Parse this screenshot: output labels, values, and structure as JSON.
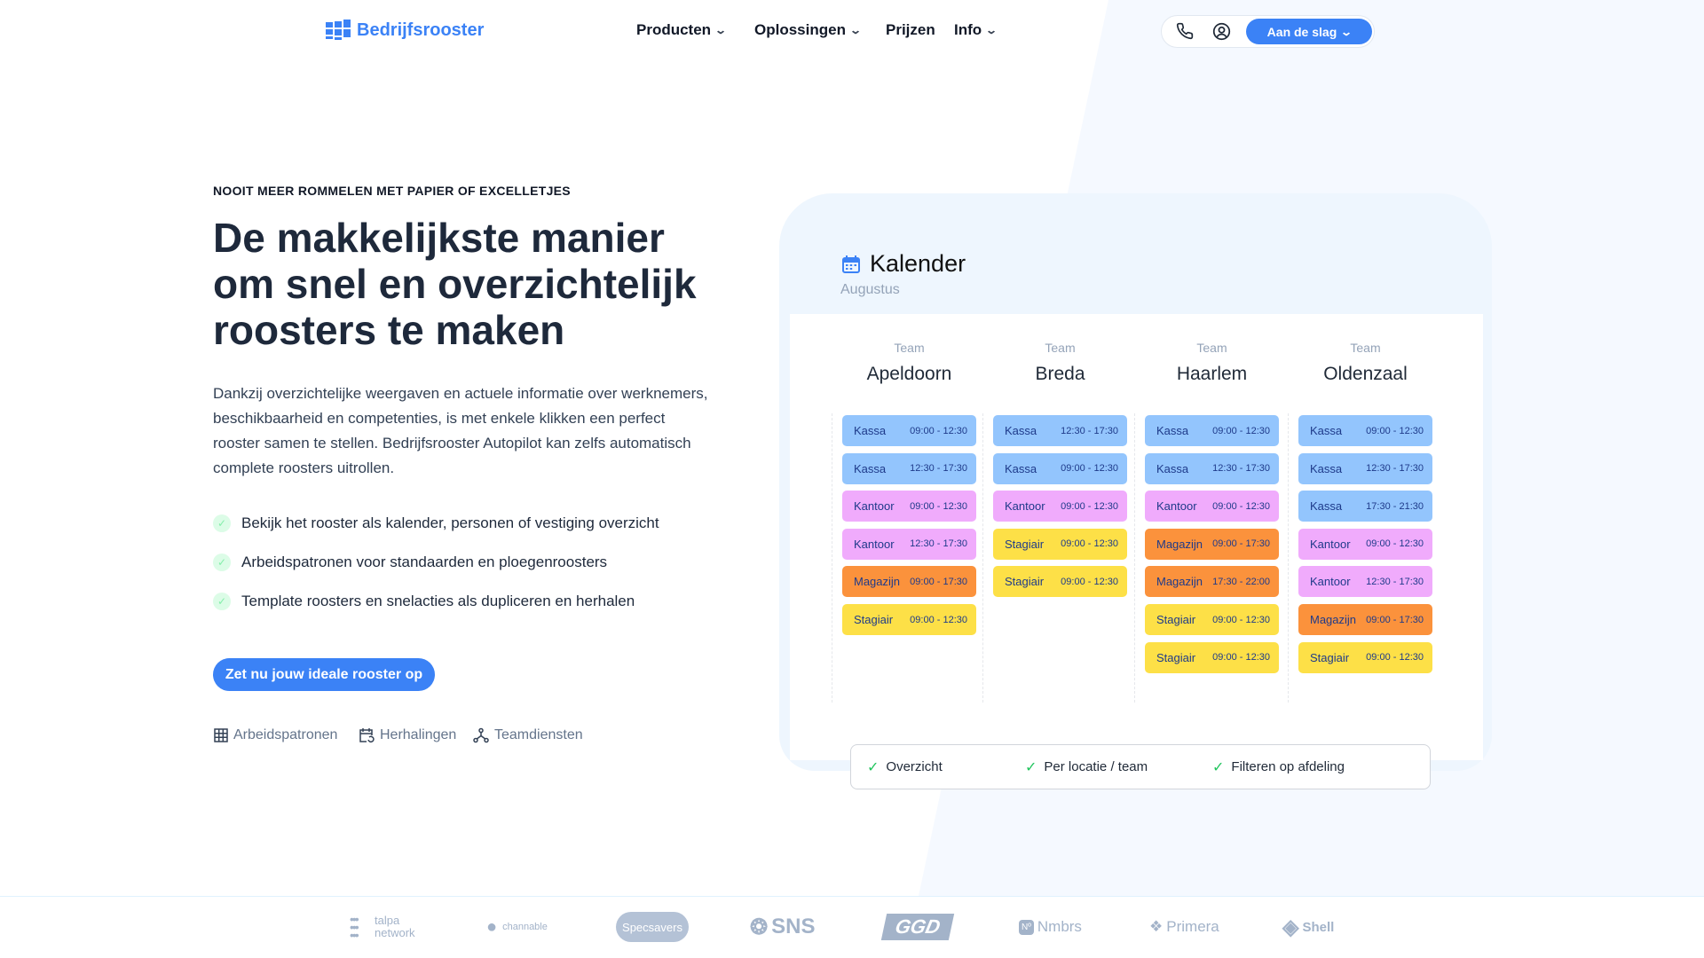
{
  "header": {
    "brand": "Bedrijfsrooster",
    "nav": [
      {
        "label": "Producten",
        "dropdown": true
      },
      {
        "label": "Oplossingen",
        "dropdown": true
      },
      {
        "label": "Prijzen",
        "dropdown": false
      },
      {
        "label": "Info",
        "dropdown": true
      }
    ],
    "cta": "Aan de slag",
    "icons": [
      "phone-icon",
      "user-circle-icon"
    ]
  },
  "hero": {
    "eyebrow": "NOOIT MEER ROMMELEN MET PAPIER OF EXCELLETJES",
    "title": "De makkelijkste manier om snel en overzichtelijk roosters te maken",
    "description": "Dankzij overzichtelijke weergaven en actuele informatie over werknemers, beschikbaarheid en competenties, is met enkele klikken een perfect rooster samen te stellen. Bedrijfsrooster Autopilot kan zelfs automatisch complete roosters uitrollen.",
    "bullets": [
      "Bekijk het rooster als kalender, personen of vestiging overzicht",
      "Arbeidspatronen voor standaarden en ploegenroosters",
      "Template roosters en snelacties als dupliceren en herhalen"
    ],
    "cta": "Zet nu jouw ideale rooster op",
    "features": [
      {
        "label": "Arbeidspatronen",
        "icon": "grid-icon"
      },
      {
        "label": "Herhalingen",
        "icon": "calendar-repeat-icon"
      },
      {
        "label": "Teamdiensten",
        "icon": "network-icon"
      }
    ]
  },
  "calendar": {
    "title": "Kalender",
    "month": "Augustus",
    "team_label": "Team",
    "colors": {
      "Kassa": "#93c5fd",
      "Kantoor": "#f0abfc",
      "Magazijn": "#fb923c",
      "Stagiair": "#fde047"
    },
    "teams": [
      {
        "name": "Apeldoorn",
        "shifts": [
          [
            "Kassa",
            "09:00 - 12:30"
          ],
          [
            "Kassa",
            "12:30 - 17:30"
          ],
          [
            "Kantoor",
            "09:00 - 12:30"
          ],
          [
            "Kantoor",
            "12:30 - 17:30"
          ],
          [
            "Magazijn",
            "09:00 - 17:30"
          ],
          [
            "Stagiair",
            "09:00 - 12:30"
          ]
        ]
      },
      {
        "name": "Breda",
        "shifts": [
          [
            "Kassa",
            "12:30 - 17:30"
          ],
          [
            "Kassa",
            "09:00 - 12:30"
          ],
          [
            "Kantoor",
            "09:00 - 12:30"
          ],
          [
            "Stagiair",
            "09:00 - 12:30"
          ],
          [
            "Stagiair",
            "09:00 - 12:30"
          ]
        ]
      },
      {
        "name": "Haarlem",
        "shifts": [
          [
            "Kassa",
            "09:00 - 12:30"
          ],
          [
            "Kassa",
            "12:30 - 17:30"
          ],
          [
            "Kantoor",
            "09:00 - 12:30"
          ],
          [
            "Magazijn",
            "09:00 - 17:30"
          ],
          [
            "Magazijn",
            "17:30 - 22:00"
          ],
          [
            "Stagiair",
            "09:00 - 12:30"
          ],
          [
            "Stagiair",
            "09:00 - 12:30"
          ]
        ]
      },
      {
        "name": "Oldenzaal",
        "shifts": [
          [
            "Kassa",
            "09:00 - 12:30"
          ],
          [
            "Kassa",
            "12:30 - 17:30"
          ],
          [
            "Kassa",
            "17:30 - 21:30"
          ],
          [
            "Kantoor",
            "09:00 - 12:30"
          ],
          [
            "Kantoor",
            "12:30 - 17:30"
          ],
          [
            "Magazijn",
            "09:00 - 17:30"
          ],
          [
            "Stagiair",
            "09:00 - 12:30"
          ]
        ]
      }
    ],
    "legend": [
      "Overzicht",
      "Per locatie / team",
      "Filteren op afdeling"
    ]
  },
  "logos": [
    "talpa network",
    "channable",
    "Specsavers",
    "SNS",
    "GGD",
    "Nmbrs",
    "Primera",
    "Shell"
  ]
}
